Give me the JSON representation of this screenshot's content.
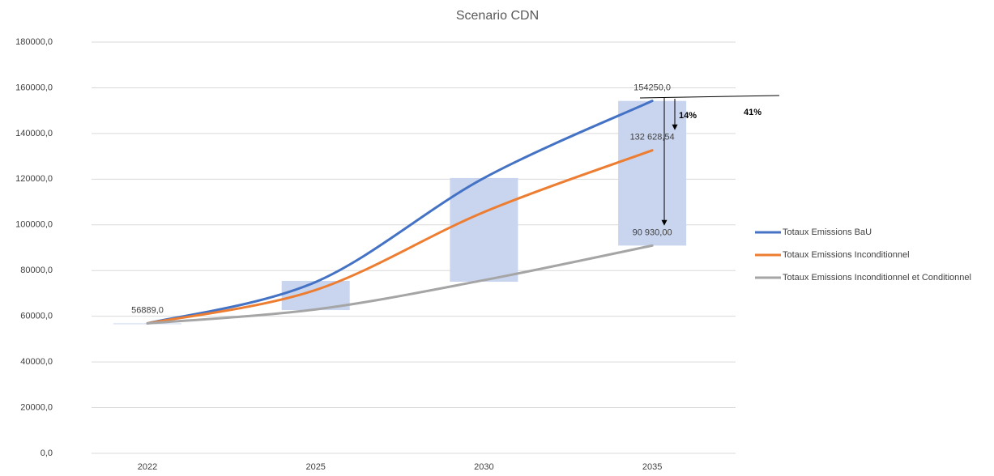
{
  "chart_data": {
    "type": "line",
    "title": "Scenario CDN",
    "categories": [
      "2022",
      "2025",
      "2030",
      "2035"
    ],
    "series": [
      {
        "name": "Totaux Emissions BaU",
        "color": "#4472c4",
        "values": [
          56889,
          75000,
          120500,
          154250
        ],
        "value_labels": [
          "56889,0",
          null,
          null,
          "154250,0"
        ]
      },
      {
        "name": "Totaux Emissions Inconditionnel",
        "color": "#ed7d31",
        "values": [
          56889,
          71500,
          105600,
          132628.54
        ],
        "value_labels": [
          null,
          null,
          null,
          "132 628,54"
        ]
      },
      {
        "name": "Totaux Emissions Inconditionnel et Conditionnel",
        "color": "#a5a5a5",
        "values": [
          56889,
          63000,
          75800,
          90930
        ],
        "value_labels": [
          null,
          null,
          null,
          "90 930,00"
        ]
      }
    ],
    "bands": {
      "color": "#c9d5ef",
      "low": [
        56889,
        62700,
        75100,
        90930
      ],
      "high": [
        56889,
        75500,
        120500,
        154250
      ]
    },
    "annotations": [
      "14%",
      "41%"
    ],
    "ylim": [
      0,
      180000
    ],
    "yticks": [
      {
        "value": 0,
        "label": "0,0"
      },
      {
        "value": 20000,
        "label": "20000,0"
      },
      {
        "value": 40000,
        "label": "40000,0"
      },
      {
        "value": 60000,
        "label": "60000,0"
      },
      {
        "value": 80000,
        "label": "80000,0"
      },
      {
        "value": 100000,
        "label": "100000,0"
      },
      {
        "value": 120000,
        "label": "120000,0"
      },
      {
        "value": 140000,
        "label": "140000,0"
      },
      {
        "value": 160000,
        "label": "160000,0"
      },
      {
        "value": 180000,
        "label": "180000,0"
      }
    ],
    "grid": true,
    "legend": "right"
  }
}
